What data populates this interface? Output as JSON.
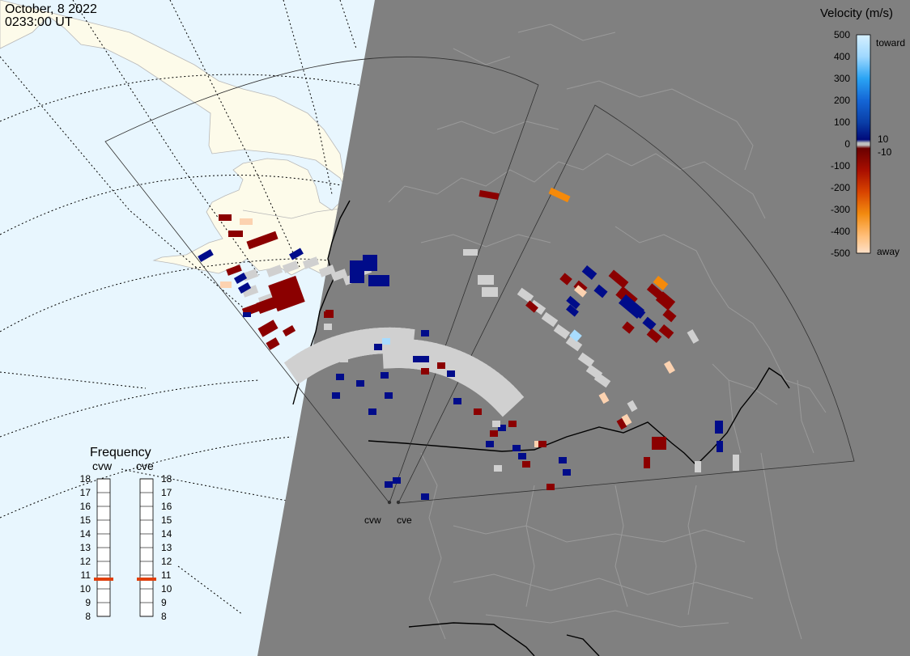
{
  "header": {
    "date": "October, 8 2022",
    "time": "0233:00 UT"
  },
  "colors": {
    "ocean": "#e8f6fe",
    "land_day": "#fdfbea",
    "night": "#808080",
    "scatter_gray": "#d0d0d0",
    "toward_dark": "#000c8a",
    "away_dark": "#8b0000"
  },
  "velocity_scale": {
    "title": "Velocity (m/s)",
    "ticks": [
      "500",
      "400",
      "300",
      "200",
      "100",
      "0",
      "-100",
      "-200",
      "-300",
      "-400",
      "-500"
    ],
    "toward_label": "toward",
    "away_label": "away",
    "plus_limit": "10",
    "minus_limit": "-10"
  },
  "frequency": {
    "title": "Frequency",
    "radars": [
      {
        "name": "cvw",
        "current_mhz": 11
      },
      {
        "name": "cve",
        "current_mhz": 11
      }
    ],
    "ticks": [
      "18",
      "17",
      "16",
      "15",
      "14",
      "13",
      "12",
      "11",
      "10",
      "9",
      "8"
    ]
  },
  "radar_sites": [
    {
      "label": "cvw"
    },
    {
      "label": "cve"
    }
  ]
}
